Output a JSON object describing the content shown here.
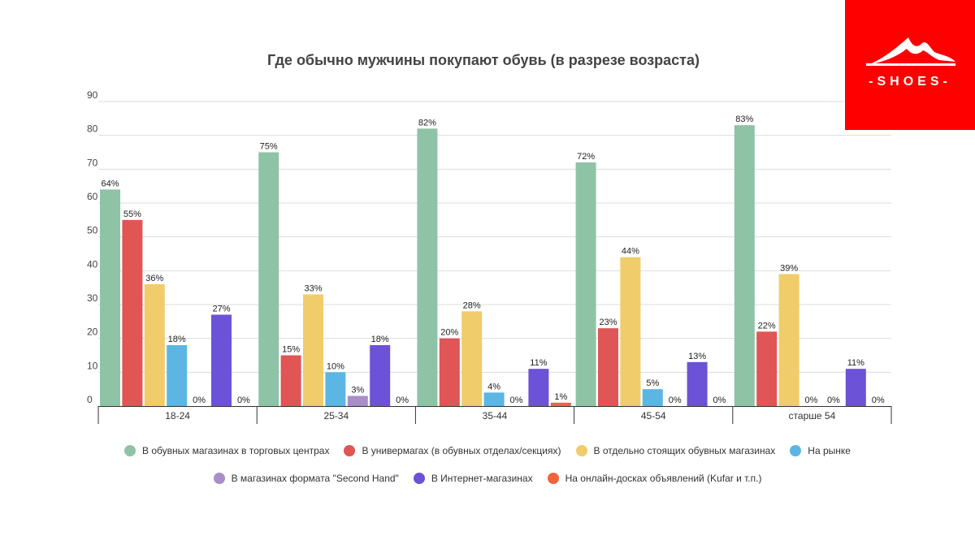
{
  "brand": {
    "name": "-SHOES-"
  },
  "chart_data": {
    "type": "bar",
    "title": "Где обычно мужчины покупают обувь  (в разрезе возраста)",
    "xlabel": "",
    "ylabel": "",
    "ylim": [
      0,
      90
    ],
    "yticks": [
      0,
      10,
      20,
      30,
      40,
      50,
      60,
      70,
      80,
      90
    ],
    "grid": true,
    "legend_position": "bottom",
    "value_suffix": "%",
    "categories": [
      "18-24",
      "25-34",
      "35-44",
      "45-54",
      "старше 54"
    ],
    "series": [
      {
        "name": "В обувных магазинах в торговых центрах",
        "color": "#8fc3a6",
        "values": [
          64,
          75,
          82,
          72,
          83
        ]
      },
      {
        "name": "В универмагах (в обувных отделах/секциях)",
        "color": "#e05555",
        "values": [
          55,
          15,
          20,
          23,
          22
        ]
      },
      {
        "name": "В отдельно стоящих обувных магазинах",
        "color": "#f0cc6a",
        "values": [
          36,
          33,
          28,
          44,
          39
        ]
      },
      {
        "name": "На рынке",
        "color": "#5cb6e4",
        "values": [
          18,
          10,
          4,
          5,
          0
        ]
      },
      {
        "name": "В магазинах формата \"Second Hand\"",
        "color": "#a98ec8",
        "values": [
          0,
          3,
          0,
          0,
          0
        ]
      },
      {
        "name": "В Интернет-магазинах",
        "color": "#6b52d6",
        "values": [
          27,
          18,
          11,
          13,
          11
        ]
      },
      {
        "name": "На онлайн-досках объявлений (Kufar и т.п.)",
        "color": "#f0643c",
        "values": [
          0,
          0,
          1,
          0,
          0
        ]
      }
    ]
  }
}
